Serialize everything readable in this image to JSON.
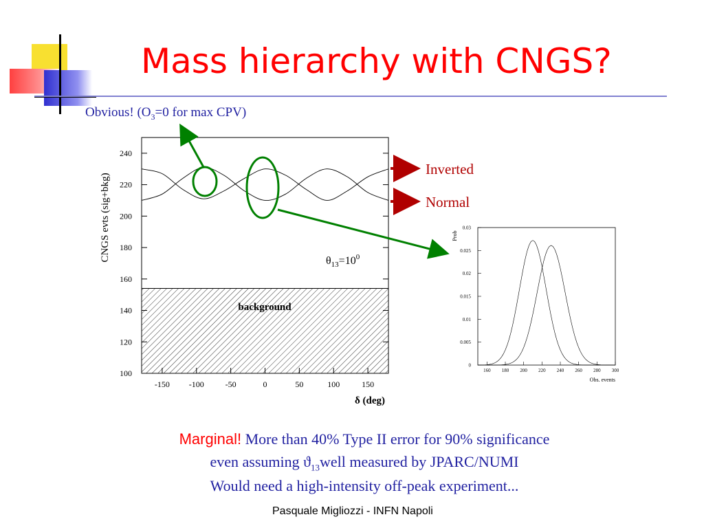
{
  "slide": {
    "title": "Mass hierarchy with CNGS?",
    "subtitle_a": "Obvious! (O",
    "subtitle_sub": "3",
    "subtitle_b": "=0 for max CPV)",
    "footer": "Pasquale Migliozzi - INFN Napoli",
    "colors": {
      "title": "#ff0000",
      "text": "#1f1fa0",
      "annotation": "#008000",
      "arrow": "#b00000"
    }
  },
  "bottom": {
    "marginal": "Marginal!",
    "line1_rest": " More than 40% Type II error for 90% significance",
    "line2_a": "even assuming ϑ",
    "line2_sub": "13",
    "line2_b": "well measured by JPARC/NUMI",
    "line3": "Would need a high-intensity off-peak experiment..."
  },
  "chart_data": [
    {
      "type": "line",
      "ylabel": "CNGS evts (sig+bkg)",
      "xlabel": "δ (deg)",
      "xlim": [
        -180,
        180
      ],
      "ylim": [
        100,
        250
      ],
      "xticks": [
        -150,
        -100,
        -50,
        0,
        50,
        100,
        150
      ],
      "yticks": [
        100,
        120,
        140,
        160,
        180,
        200,
        220,
        240
      ],
      "series": [
        {
          "name": "Inverted",
          "x": [
            -180,
            -150,
            -120,
            -90,
            -60,
            -30,
            0,
            30,
            60,
            90,
            120,
            150,
            180
          ],
          "y": [
            230,
            227,
            217,
            211,
            216,
            224,
            230,
            226,
            217,
            210,
            216,
            225,
            230
          ]
        },
        {
          "name": "Normal",
          "x": [
            -180,
            -150,
            -120,
            -90,
            -60,
            -30,
            0,
            30,
            60,
            90,
            120,
            150,
            180
          ],
          "y": [
            210,
            214,
            224,
            231,
            226,
            216,
            210,
            214,
            224,
            230,
            225,
            215,
            210
          ]
        }
      ],
      "background_level": 154,
      "annotations": {
        "background": "background",
        "theta_a": "θ",
        "theta_sub": "13",
        "theta_b": "=10",
        "theta_sup": "0"
      }
    },
    {
      "type": "line",
      "ylabel": "Prob",
      "xlabel": "Obs. events",
      "xlim": [
        150,
        300
      ],
      "ylim": [
        0,
        0.03
      ],
      "xticks": [
        160,
        180,
        200,
        220,
        240,
        260,
        280,
        300
      ],
      "yticks": [
        "0",
        "0.005",
        "0.01",
        "0.015",
        "0.02",
        "0.025",
        "0.03"
      ],
      "series": [
        {
          "mean": 210,
          "sigma": 14.6,
          "peak": 0.0272
        },
        {
          "mean": 230,
          "sigma": 15.3,
          "peak": 0.0261
        }
      ]
    }
  ]
}
